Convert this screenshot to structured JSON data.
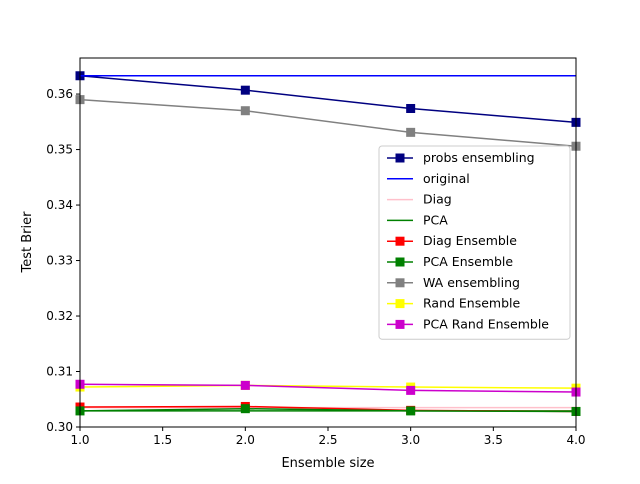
{
  "chart_data": {
    "type": "line",
    "title": "",
    "xlabel": "Ensemble size",
    "ylabel": "Test Brier",
    "xlim": [
      1.0,
      4.0
    ],
    "ylim": [
      0.3,
      0.3665
    ],
    "xticks": [
      "1.0",
      "1.5",
      "2.0",
      "2.5",
      "3.0",
      "3.5",
      "4.0"
    ],
    "yticks": [
      "0.30",
      "0.31",
      "0.32",
      "0.33",
      "0.34",
      "0.35",
      "0.36"
    ],
    "grid": false,
    "legend_position": "center-right",
    "x": [
      1,
      2,
      3,
      4
    ],
    "series": [
      {
        "name": "probs ensembling",
        "color": "#000080",
        "marker": "square",
        "values": [
          0.3633,
          0.3607,
          0.3574,
          0.3549
        ]
      },
      {
        "name": "original",
        "color": "#0000ff",
        "marker": "none",
        "values": [
          0.3633,
          0.3633,
          0.3633,
          0.3633
        ]
      },
      {
        "name": "Diag",
        "color": "#ffc0cb",
        "marker": "none",
        "values": [
          0.3035,
          0.3035,
          0.3035,
          0.3035
        ]
      },
      {
        "name": "PCA",
        "color": "#008000",
        "marker": "none",
        "values": [
          0.3029,
          0.3029,
          0.3029,
          0.3029
        ]
      },
      {
        "name": "Diag Ensemble",
        "color": "#ff0000",
        "marker": "square",
        "values": [
          0.3036,
          0.3037,
          0.303,
          0.3028
        ]
      },
      {
        "name": "PCA Ensemble",
        "color": "#008000",
        "marker": "square",
        "values": [
          0.3029,
          0.3033,
          0.3029,
          0.3028
        ]
      },
      {
        "name": "WA ensembling",
        "color": "#808080",
        "marker": "square",
        "values": [
          0.359,
          0.357,
          0.3531,
          0.3506
        ]
      },
      {
        "name": "Rand Ensemble",
        "color": "#ffff00",
        "marker": "square",
        "values": [
          0.3072,
          0.3075,
          0.3072,
          0.307
        ]
      },
      {
        "name": "PCA Rand Ensemble",
        "color": "#cc00cc",
        "marker": "square",
        "values": [
          0.3077,
          0.3075,
          0.3066,
          0.3063
        ]
      }
    ]
  }
}
